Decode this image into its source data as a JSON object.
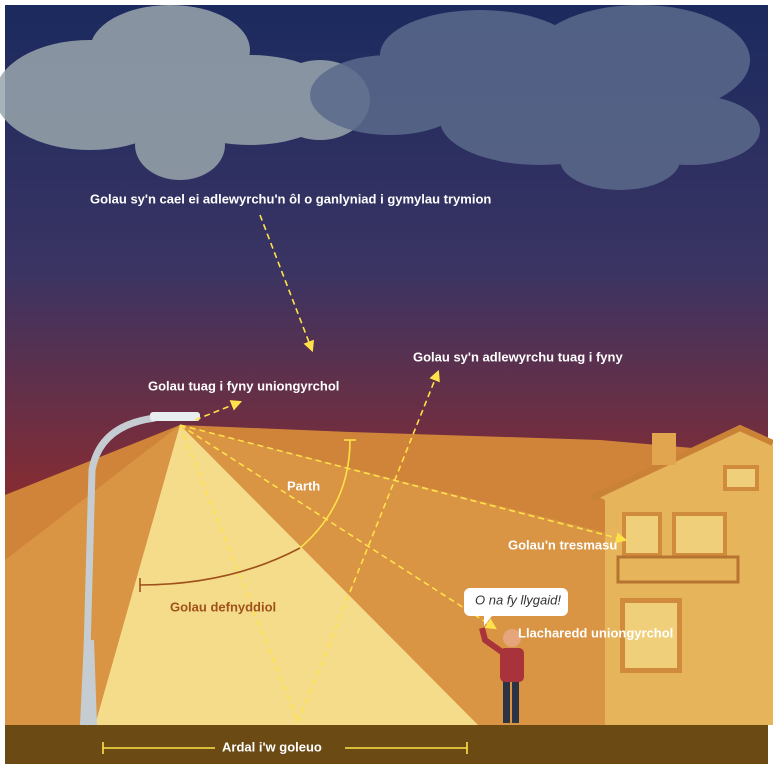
{
  "labels": {
    "cloud_reflection": "Golau sy'n cael ei adlewyrchu'n ôl o ganlyniad i gymylau trymion",
    "upward_reflection": "Golau sy'n adlewyrchu tuag i fyny",
    "direct_upward": "Golau tuag i fyny uniongyrchol",
    "zone": "Parth",
    "trespass": "Golau'n tresmasu",
    "speech": "O na fy llygaid!",
    "glare": "Llacharedd uniongyrchol",
    "useful": "Golau defnyddiol",
    "area": "Ardal i'w goleuo"
  }
}
